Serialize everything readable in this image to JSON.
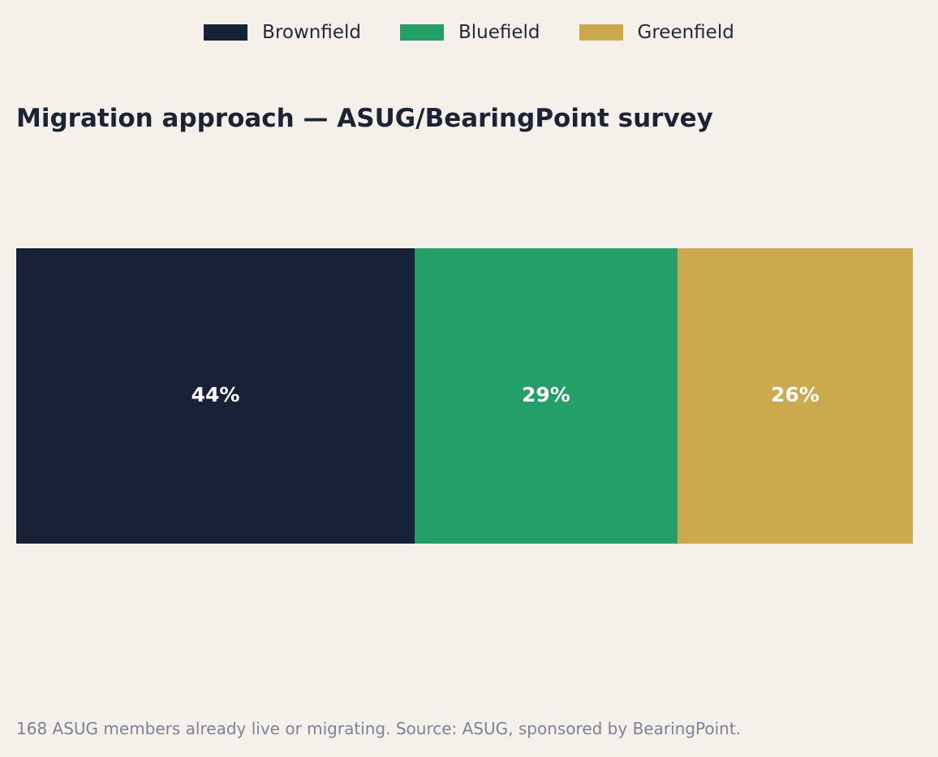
{
  "legend": {
    "items": [
      {
        "label": "Brownfield",
        "color": "#172236"
      },
      {
        "label": "Bluefield",
        "color": "#22a067"
      },
      {
        "label": "Greenfield",
        "color": "#cba94d"
      }
    ]
  },
  "title": "Migration approach — ASUG/BearingPoint survey",
  "footnote": "168 ASUG members already live or migrating. Source: ASUG, sponsored by BearingPoint.",
  "chart_data": {
    "type": "bar",
    "orientation": "horizontal-stacked-100",
    "categories": [
      "Brownfield",
      "Bluefield",
      "Greenfield"
    ],
    "values": [
      44,
      29,
      26
    ],
    "data_labels": [
      "44%",
      "29%",
      "26%"
    ],
    "colors": [
      "#172236",
      "#22a067",
      "#cba94d"
    ],
    "title": "Migration approach — ASUG/BearingPoint survey",
    "legend_position": "top-center",
    "grid": false
  }
}
